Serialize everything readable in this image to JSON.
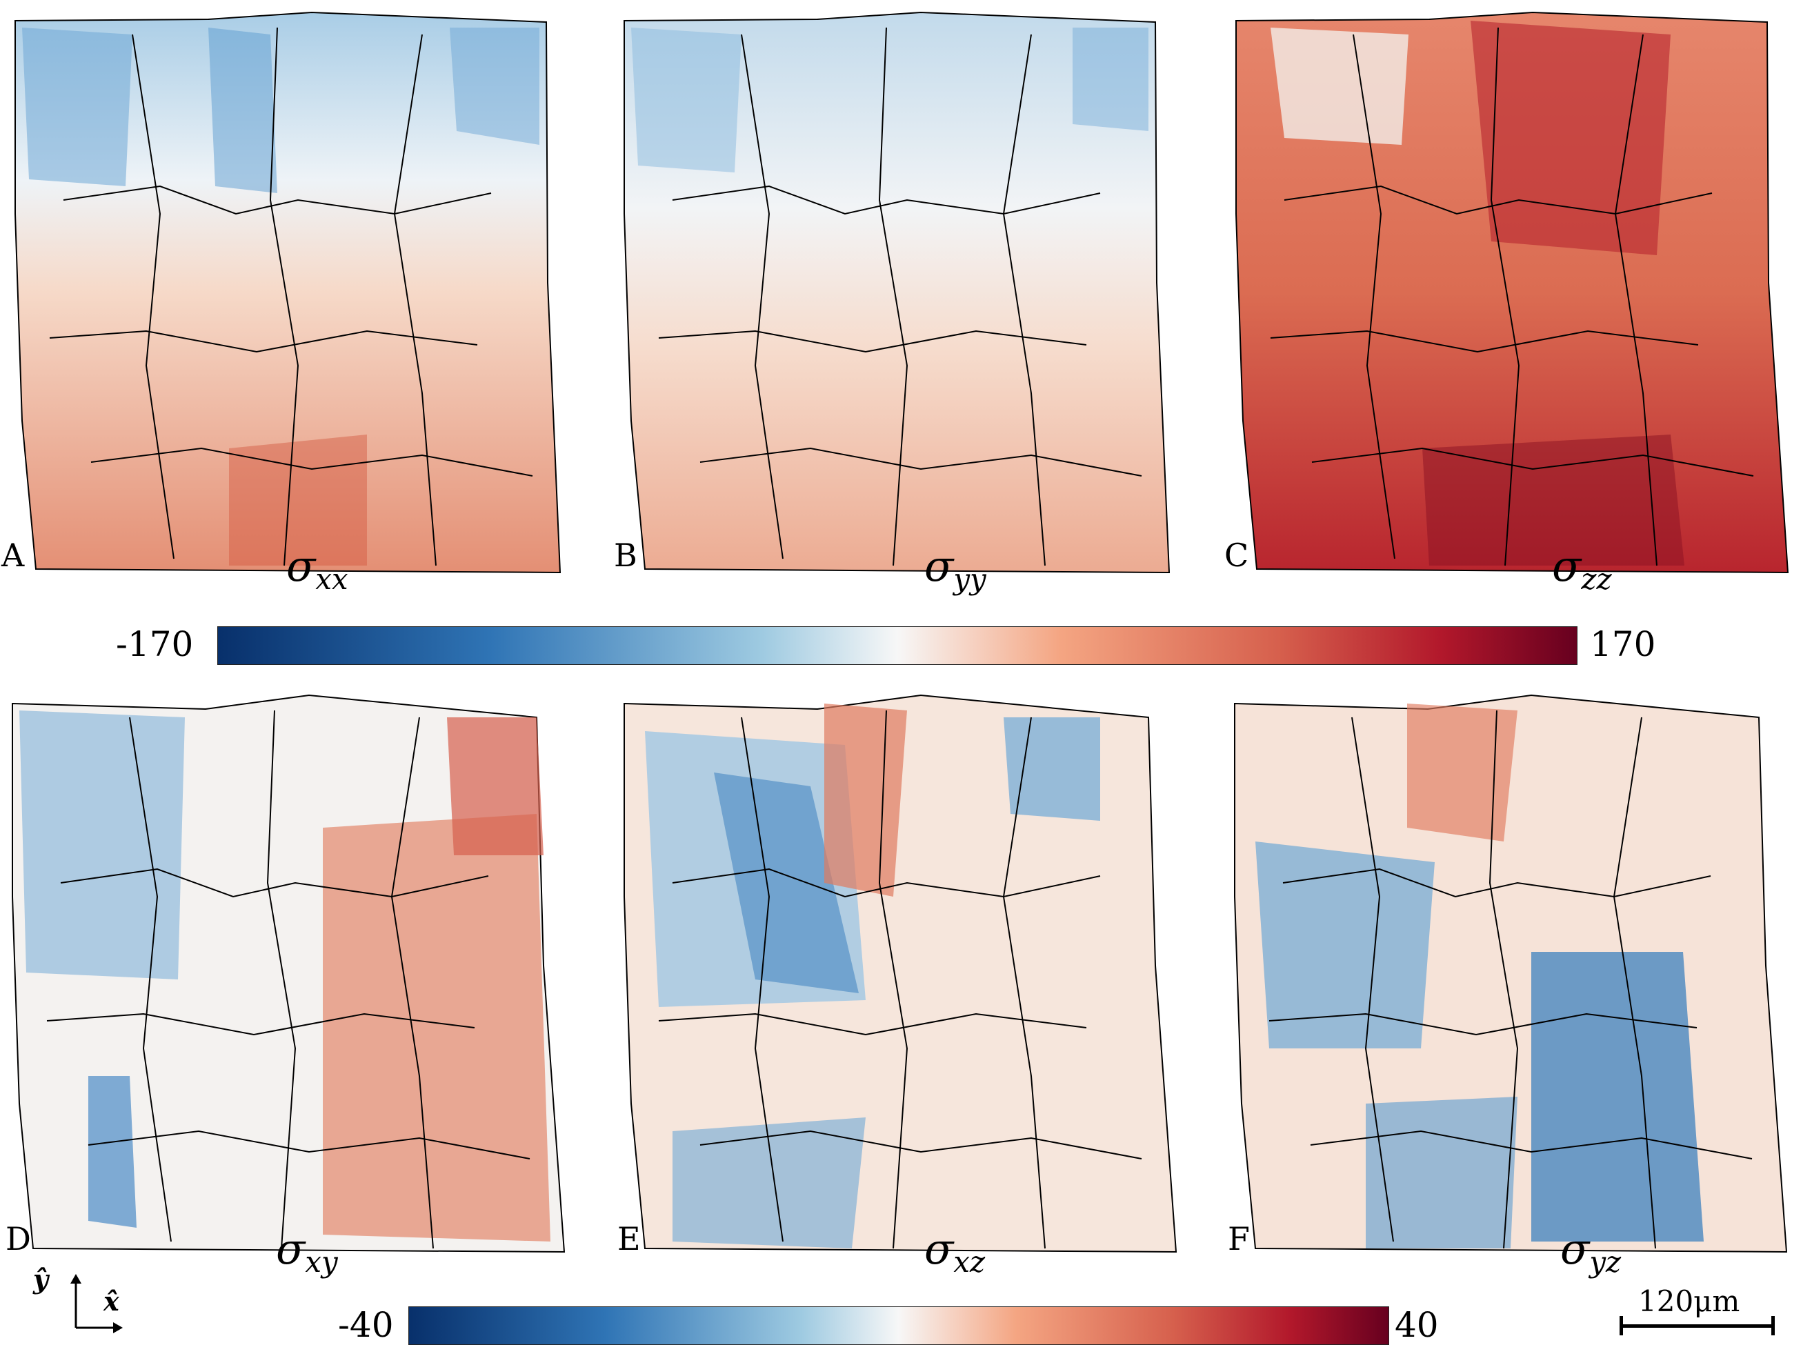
{
  "panels": [
    {
      "id": "A",
      "component_label": "xx"
    },
    {
      "id": "B",
      "component_label": "yy"
    },
    {
      "id": "C",
      "component_label": "zz"
    },
    {
      "id": "D",
      "component_label": "xy"
    },
    {
      "id": "E",
      "component_label": "xz"
    },
    {
      "id": "F",
      "component_label": "yz"
    }
  ],
  "stress_symbol": "σ",
  "colorbar_normal": {
    "min": "-170",
    "max": "170"
  },
  "colorbar_shear": {
    "min": "-40",
    "max": "40"
  },
  "scale_bar": {
    "label": "120μm"
  },
  "axes": {
    "y": "ŷ",
    "x": "x̂"
  },
  "colors": {
    "neg": "#2f74b5",
    "neutral": "#f7f7f7",
    "pos": "#d6604d",
    "strong_pos": "#b2182b",
    "strong_neg": "#08306b"
  }
}
